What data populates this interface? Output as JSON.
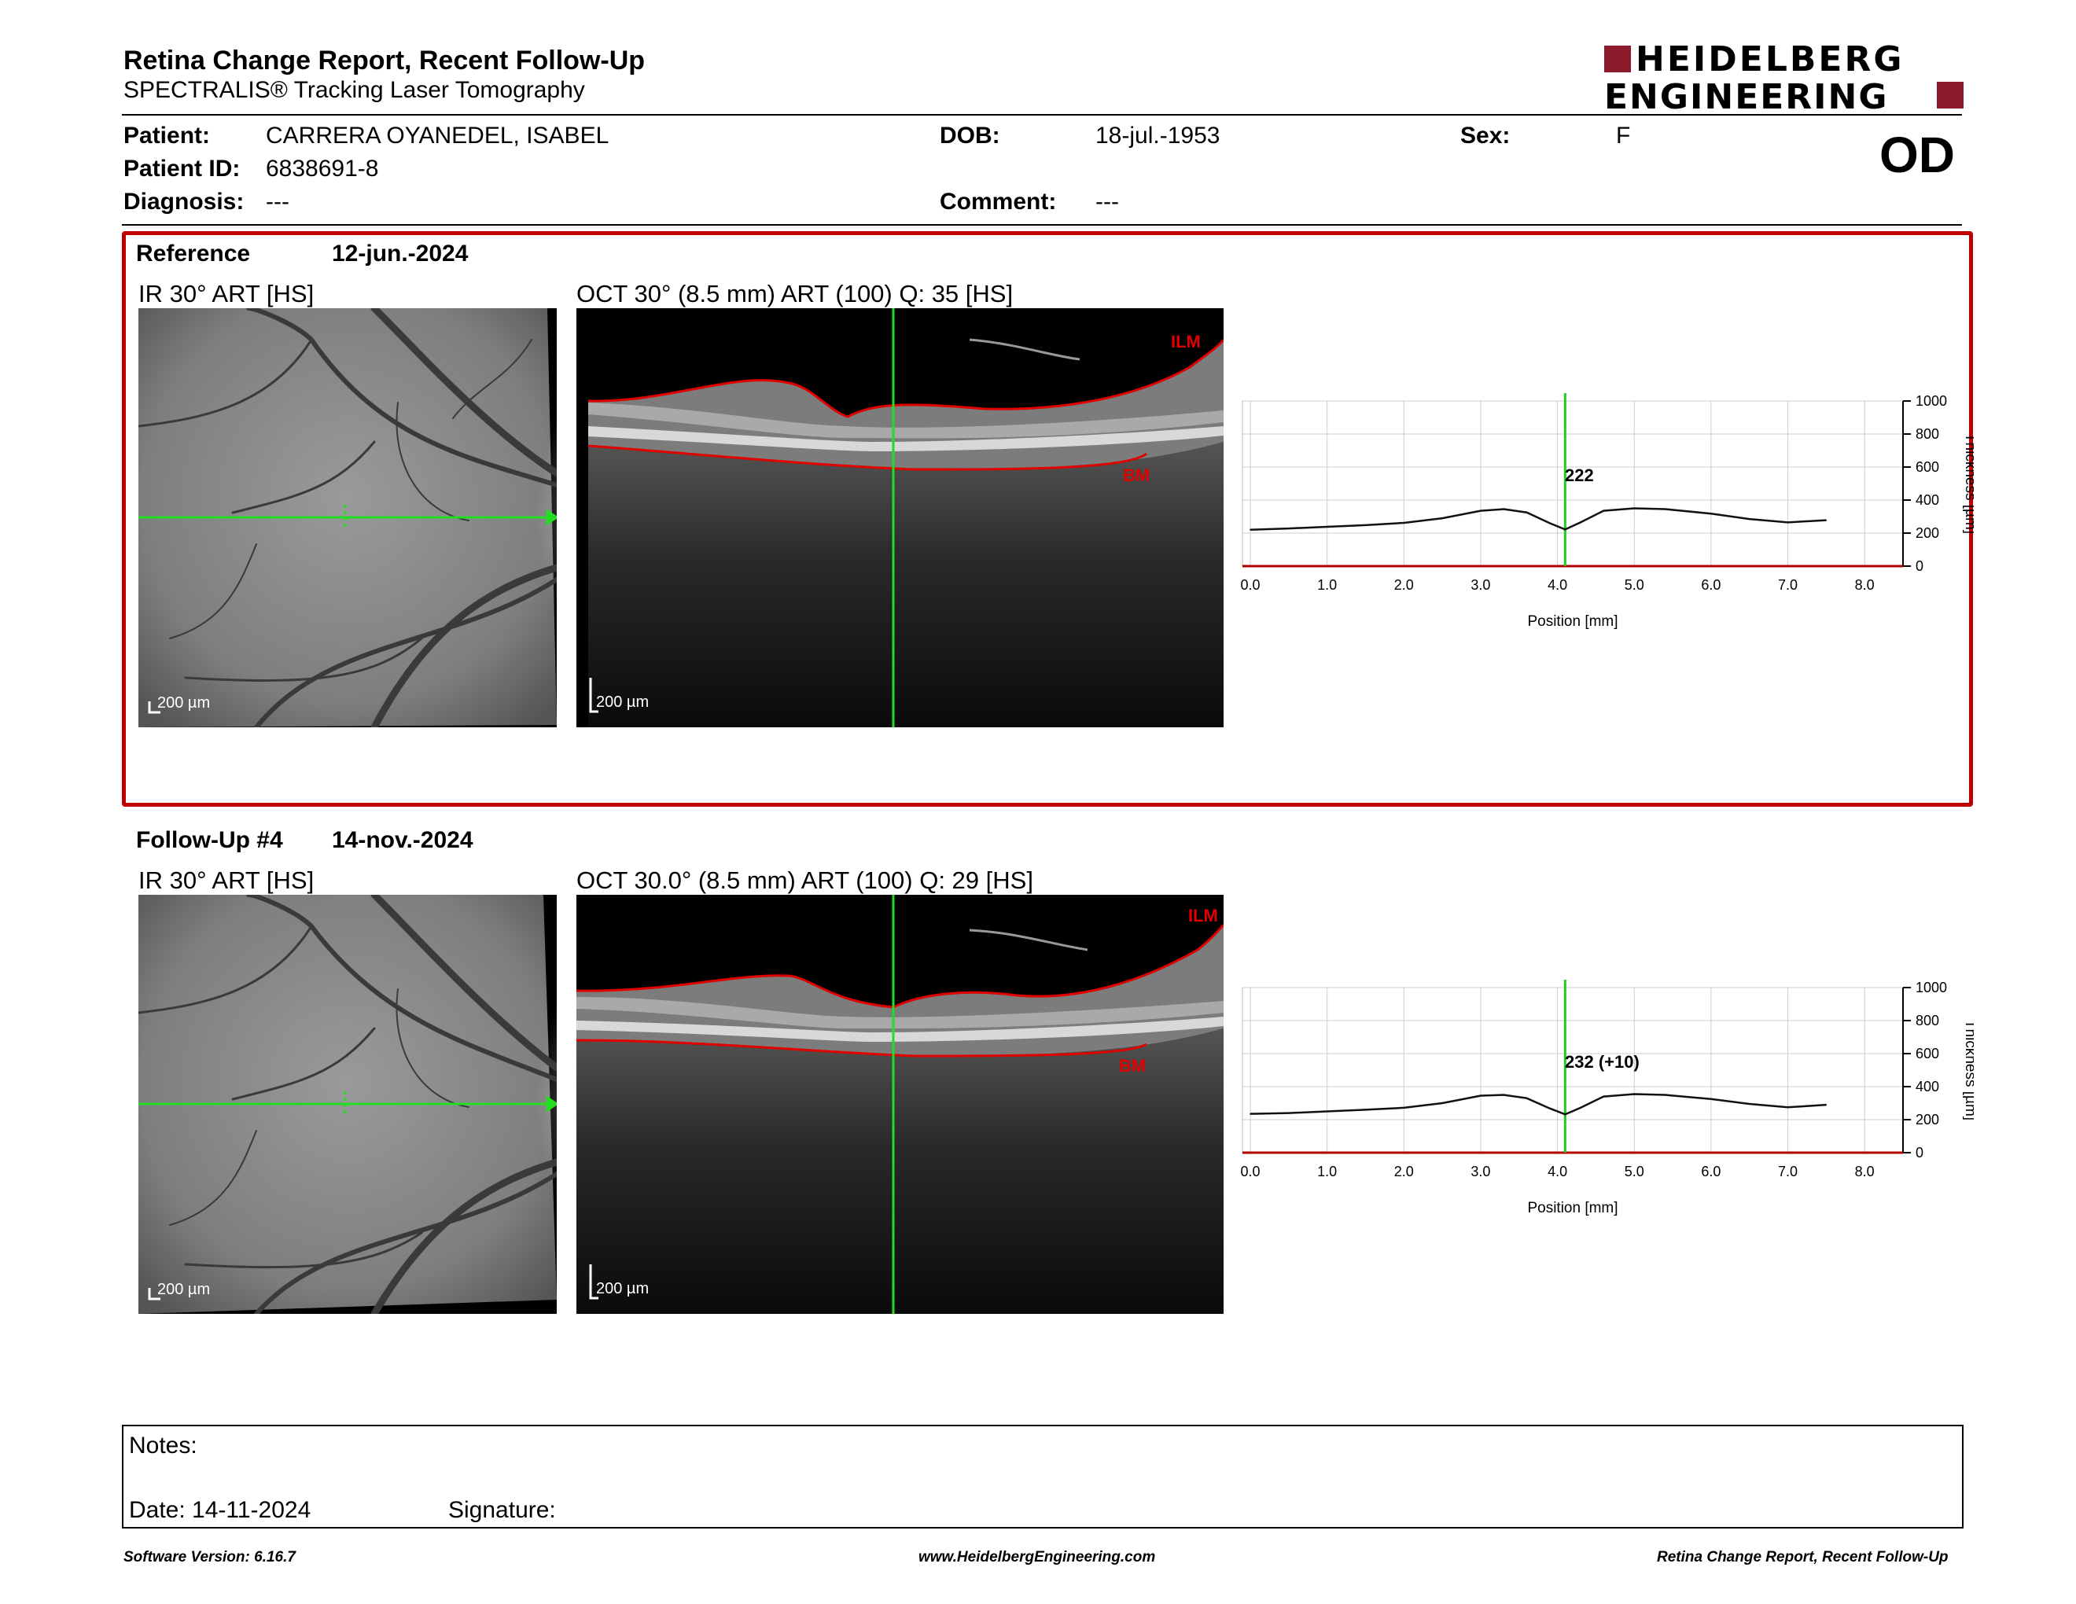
{
  "report": {
    "title": "Retina Change Report, Recent Follow-Up",
    "subtitle": "SPECTRALIS® Tracking Laser Tomography"
  },
  "brand": {
    "line1": "HEIDELBERG",
    "line2": "ENGINEERING",
    "color": "#8b1a2b"
  },
  "patient": {
    "patient_label": "Patient:",
    "patient_value": "CARRERA OYANEDEL, ISABEL",
    "id_label": "Patient ID:",
    "id_value": "6838691-8",
    "diagnosis_label": "Diagnosis:",
    "diagnosis_value": "---",
    "dob_label": "DOB:",
    "dob_value": "18-jul.-1953",
    "comment_label": "Comment:",
    "comment_value": "---",
    "sex_label": "Sex:",
    "sex_value": "F",
    "eye": "OD"
  },
  "reference": {
    "label": "Reference",
    "date": "12-jun.-2024",
    "ir_title": "IR 30° ART [HS]",
    "oct_title": "OCT 30° (8.5 mm) ART (100) Q: 35 [HS]",
    "scale": "200 µm",
    "ilm": "ILM",
    "bm": "BM",
    "thickness_label": "222"
  },
  "followup": {
    "label": "Follow-Up #4",
    "date": "14-nov.-2024",
    "ir_title": "IR 30° ART [HS]",
    "oct_title": "OCT 30.0° (8.5 mm) ART (100) Q: 29 [HS]",
    "scale": "200 µm",
    "ilm": "ILM",
    "bm": "BM",
    "thickness_label": "232 (+10)"
  },
  "chart_data": [
    {
      "type": "line",
      "xlabel": "Position [mm]",
      "ylabel": "Thickness [µm]",
      "xlim": [
        0,
        8.5
      ],
      "ylim": [
        0,
        1000
      ],
      "xticks": [
        "0.0",
        "1.0",
        "2.0",
        "3.0",
        "4.0",
        "5.0",
        "6.0",
        "7.0",
        "8.0"
      ],
      "yticks": [
        "0",
        "200",
        "400",
        "600",
        "800",
        "1000"
      ],
      "cursor_x": 4.1,
      "grid": true,
      "series": [
        {
          "x": [
            0,
            0.5,
            1.0,
            1.5,
            2.0,
            2.5,
            3.0,
            3.3,
            3.6,
            3.9,
            4.1,
            4.3,
            4.6,
            5.0,
            5.4,
            6.0,
            6.5,
            7.0,
            7.5
          ],
          "y": [
            220,
            228,
            238,
            248,
            262,
            290,
            335,
            345,
            325,
            260,
            222,
            265,
            335,
            350,
            345,
            318,
            285,
            265,
            278
          ]
        }
      ]
    },
    {
      "type": "line",
      "xlabel": "Position [mm]",
      "ylabel": "Thickness [µm]",
      "xlim": [
        0,
        8.5
      ],
      "ylim": [
        0,
        1000
      ],
      "xticks": [
        "0.0",
        "1.0",
        "2.0",
        "3.0",
        "4.0",
        "5.0",
        "6.0",
        "7.0",
        "8.0"
      ],
      "yticks": [
        "0",
        "200",
        "400",
        "600",
        "800",
        "1000"
      ],
      "cursor_x": 4.1,
      "grid": true,
      "series": [
        {
          "x": [
            0,
            0.5,
            1.0,
            1.5,
            2.0,
            2.5,
            3.0,
            3.3,
            3.6,
            3.9,
            4.1,
            4.3,
            4.6,
            5.0,
            5.4,
            6.0,
            6.5,
            7.0,
            7.5
          ],
          "y": [
            235,
            240,
            250,
            260,
            272,
            300,
            345,
            350,
            330,
            268,
            232,
            272,
            340,
            355,
            350,
            325,
            295,
            275,
            290
          ]
        }
      ]
    }
  ],
  "notes": {
    "label": "Notes:",
    "date_label": "Date: 14-11-2024",
    "signature_label": "Signature:"
  },
  "footer": {
    "left": "Software Version: 6.16.7",
    "center": "www.HeidelbergEngineering.com",
    "right": "Retina Change Report, Recent Follow-Up"
  }
}
